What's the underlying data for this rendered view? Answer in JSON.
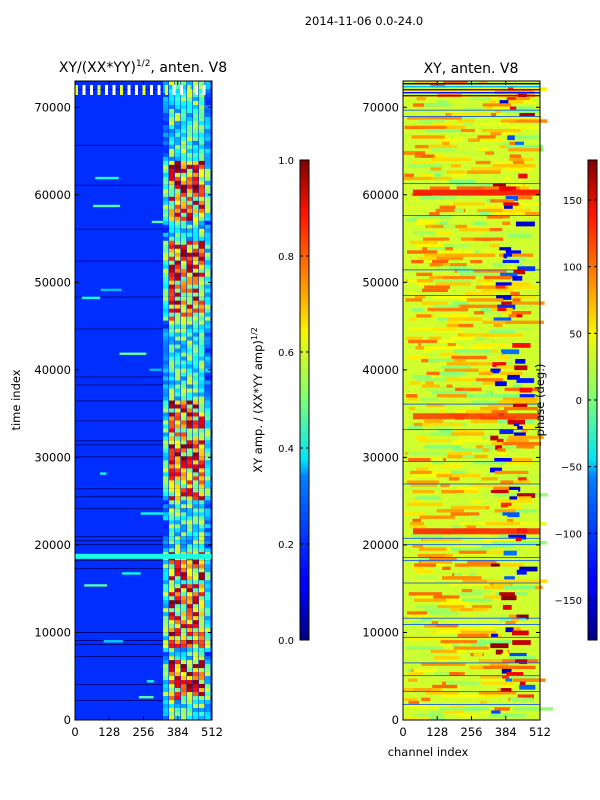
{
  "figure": {
    "suptitle": "2014-11-06 0.0-24.0"
  },
  "chart_data": [
    {
      "type": "heatmap",
      "title": "XY/(XX*YY)^{1/2}, anten. V8",
      "title_main": "XY/(XX*YY)",
      "title_sup": "1/2",
      "title_tail": ", anten. V8",
      "xlabel": "",
      "ylabel": "time index",
      "xlim": [
        0,
        512
      ],
      "ylim": [
        0,
        73000
      ],
      "xticks": [
        0,
        128,
        256,
        384,
        512
      ],
      "yticks": [
        0,
        10000,
        20000,
        30000,
        40000,
        50000,
        60000,
        70000
      ],
      "colorbar": {
        "label": "XY amp. / (XX*YY amp)^{1/2}",
        "label_main": "XY amp. / (XX*YY amp)",
        "label_sup": "1/2",
        "range": [
          0.0,
          1.0
        ],
        "ticks": [
          "0.0",
          "0.2",
          "0.4",
          "0.6",
          "0.8",
          "1.0"
        ],
        "tick_values": [
          0.0,
          0.2,
          0.4,
          0.6,
          0.8,
          1.0
        ],
        "colormap": "jet"
      }
    },
    {
      "type": "heatmap",
      "title": "XY, anten. V8",
      "xlabel": "channel index",
      "ylabel": "",
      "xlim": [
        0,
        512
      ],
      "ylim": [
        0,
        73000
      ],
      "xticks": [
        0,
        128,
        256,
        384,
        512
      ],
      "yticks": [
        0,
        10000,
        20000,
        30000,
        40000,
        50000,
        60000,
        70000
      ],
      "colorbar": {
        "label": "phase (deg.)",
        "range": [
          -180,
          180
        ],
        "ticks": [
          "−150",
          "−100",
          "−50",
          "0",
          "50",
          "100",
          "150"
        ],
        "tick_values": [
          -150,
          -100,
          -50,
          0,
          50,
          100,
          150
        ],
        "colormap": "jet"
      }
    }
  ]
}
